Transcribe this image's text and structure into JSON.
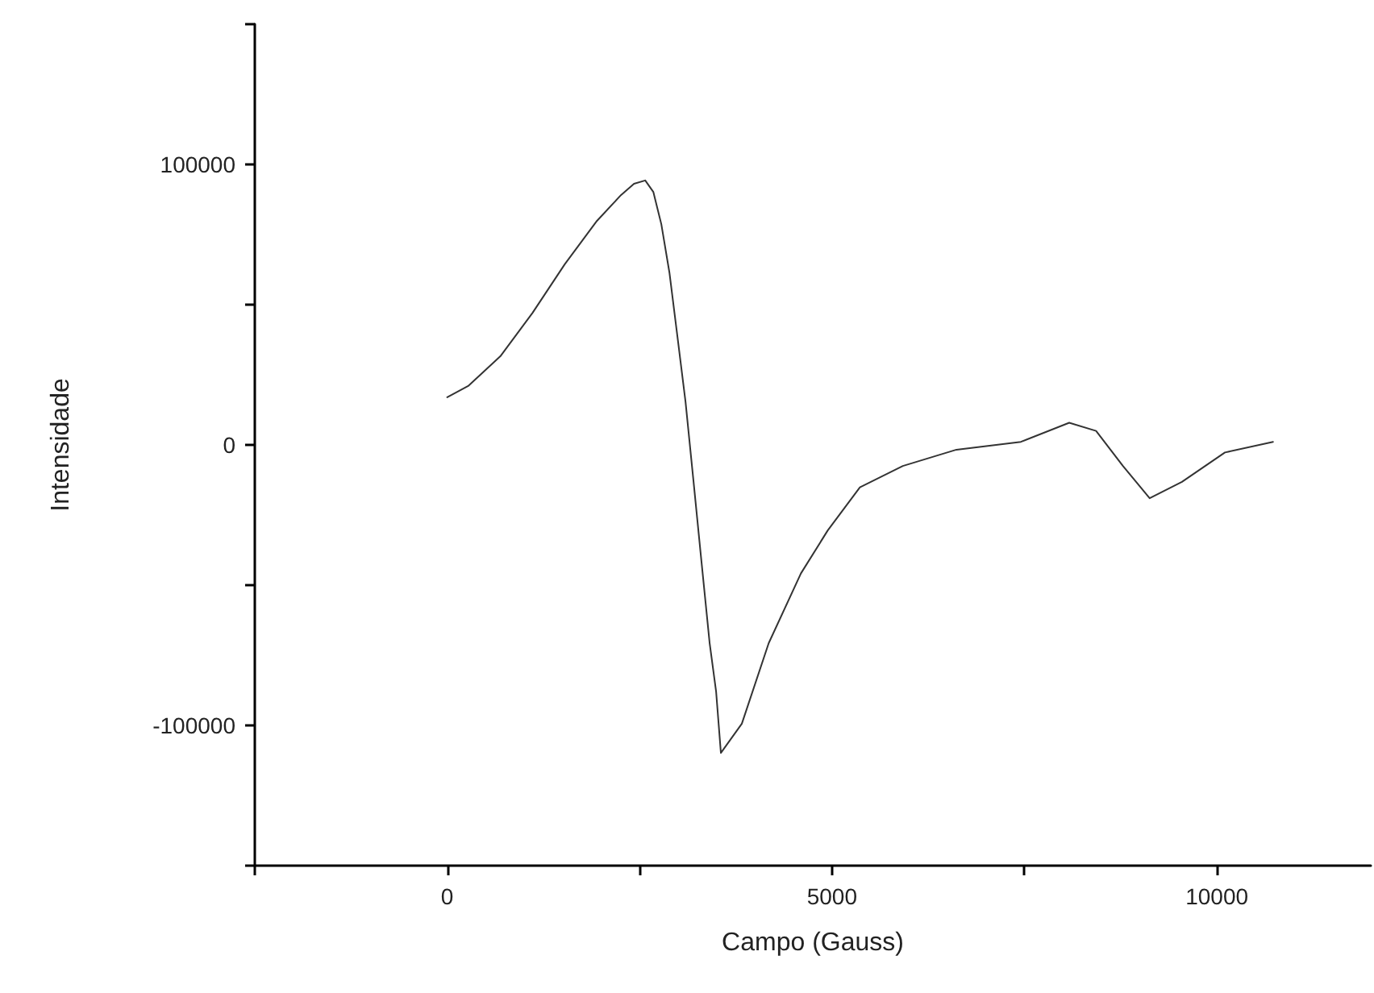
{
  "chart_data": {
    "type": "line",
    "xlabel": "Campo (Gauss)",
    "ylabel": "Intensidade",
    "xlim": [
      -2500,
      12000
    ],
    "xticks": [
      {
        "value": -2500,
        "label": null
      },
      0,
      {
        "value": 2500,
        "label": null
      },
      5000,
      {
        "value": 7500,
        "label": null
      },
      10000
    ],
    "ylim": [
      -150000,
      150000
    ],
    "yticks": [
      {
        "value": -150000,
        "label": null
      },
      -100000,
      {
        "value": -50000,
        "label": null
      },
      0,
      {
        "value": 50000,
        "label": null
      },
      100000,
      {
        "value": 150000,
        "label": null
      }
    ],
    "grid": false,
    "marker": "none",
    "line_style": "solid",
    "series": [
      {
        "color": "#333333",
        "x": [
          0,
          272,
          690,
          1109,
          1527,
          1946,
          2259,
          2427,
          2573,
          2678,
          2782,
          2887,
          2992,
          3096,
          3201,
          3305,
          3410,
          3494,
          3556,
          3828,
          4177,
          4596,
          4944,
          5362,
          5920,
          6617,
          7454,
          8082,
          8431,
          8780,
          9127,
          9546,
          10105,
          10730
        ],
        "values": [
          17000,
          21000,
          31600,
          47100,
          64400,
          79900,
          89100,
          93100,
          94300,
          90200,
          78700,
          61500,
          38500,
          15500,
          -13200,
          -42000,
          -70700,
          -88000,
          -109800,
          -99400,
          -70700,
          -45800,
          -30500,
          -15100,
          -7500,
          -1700,
          1100,
          7900,
          5000,
          -7500,
          -19000,
          -13200,
          -2700,
          1100
        ]
      }
    ]
  }
}
